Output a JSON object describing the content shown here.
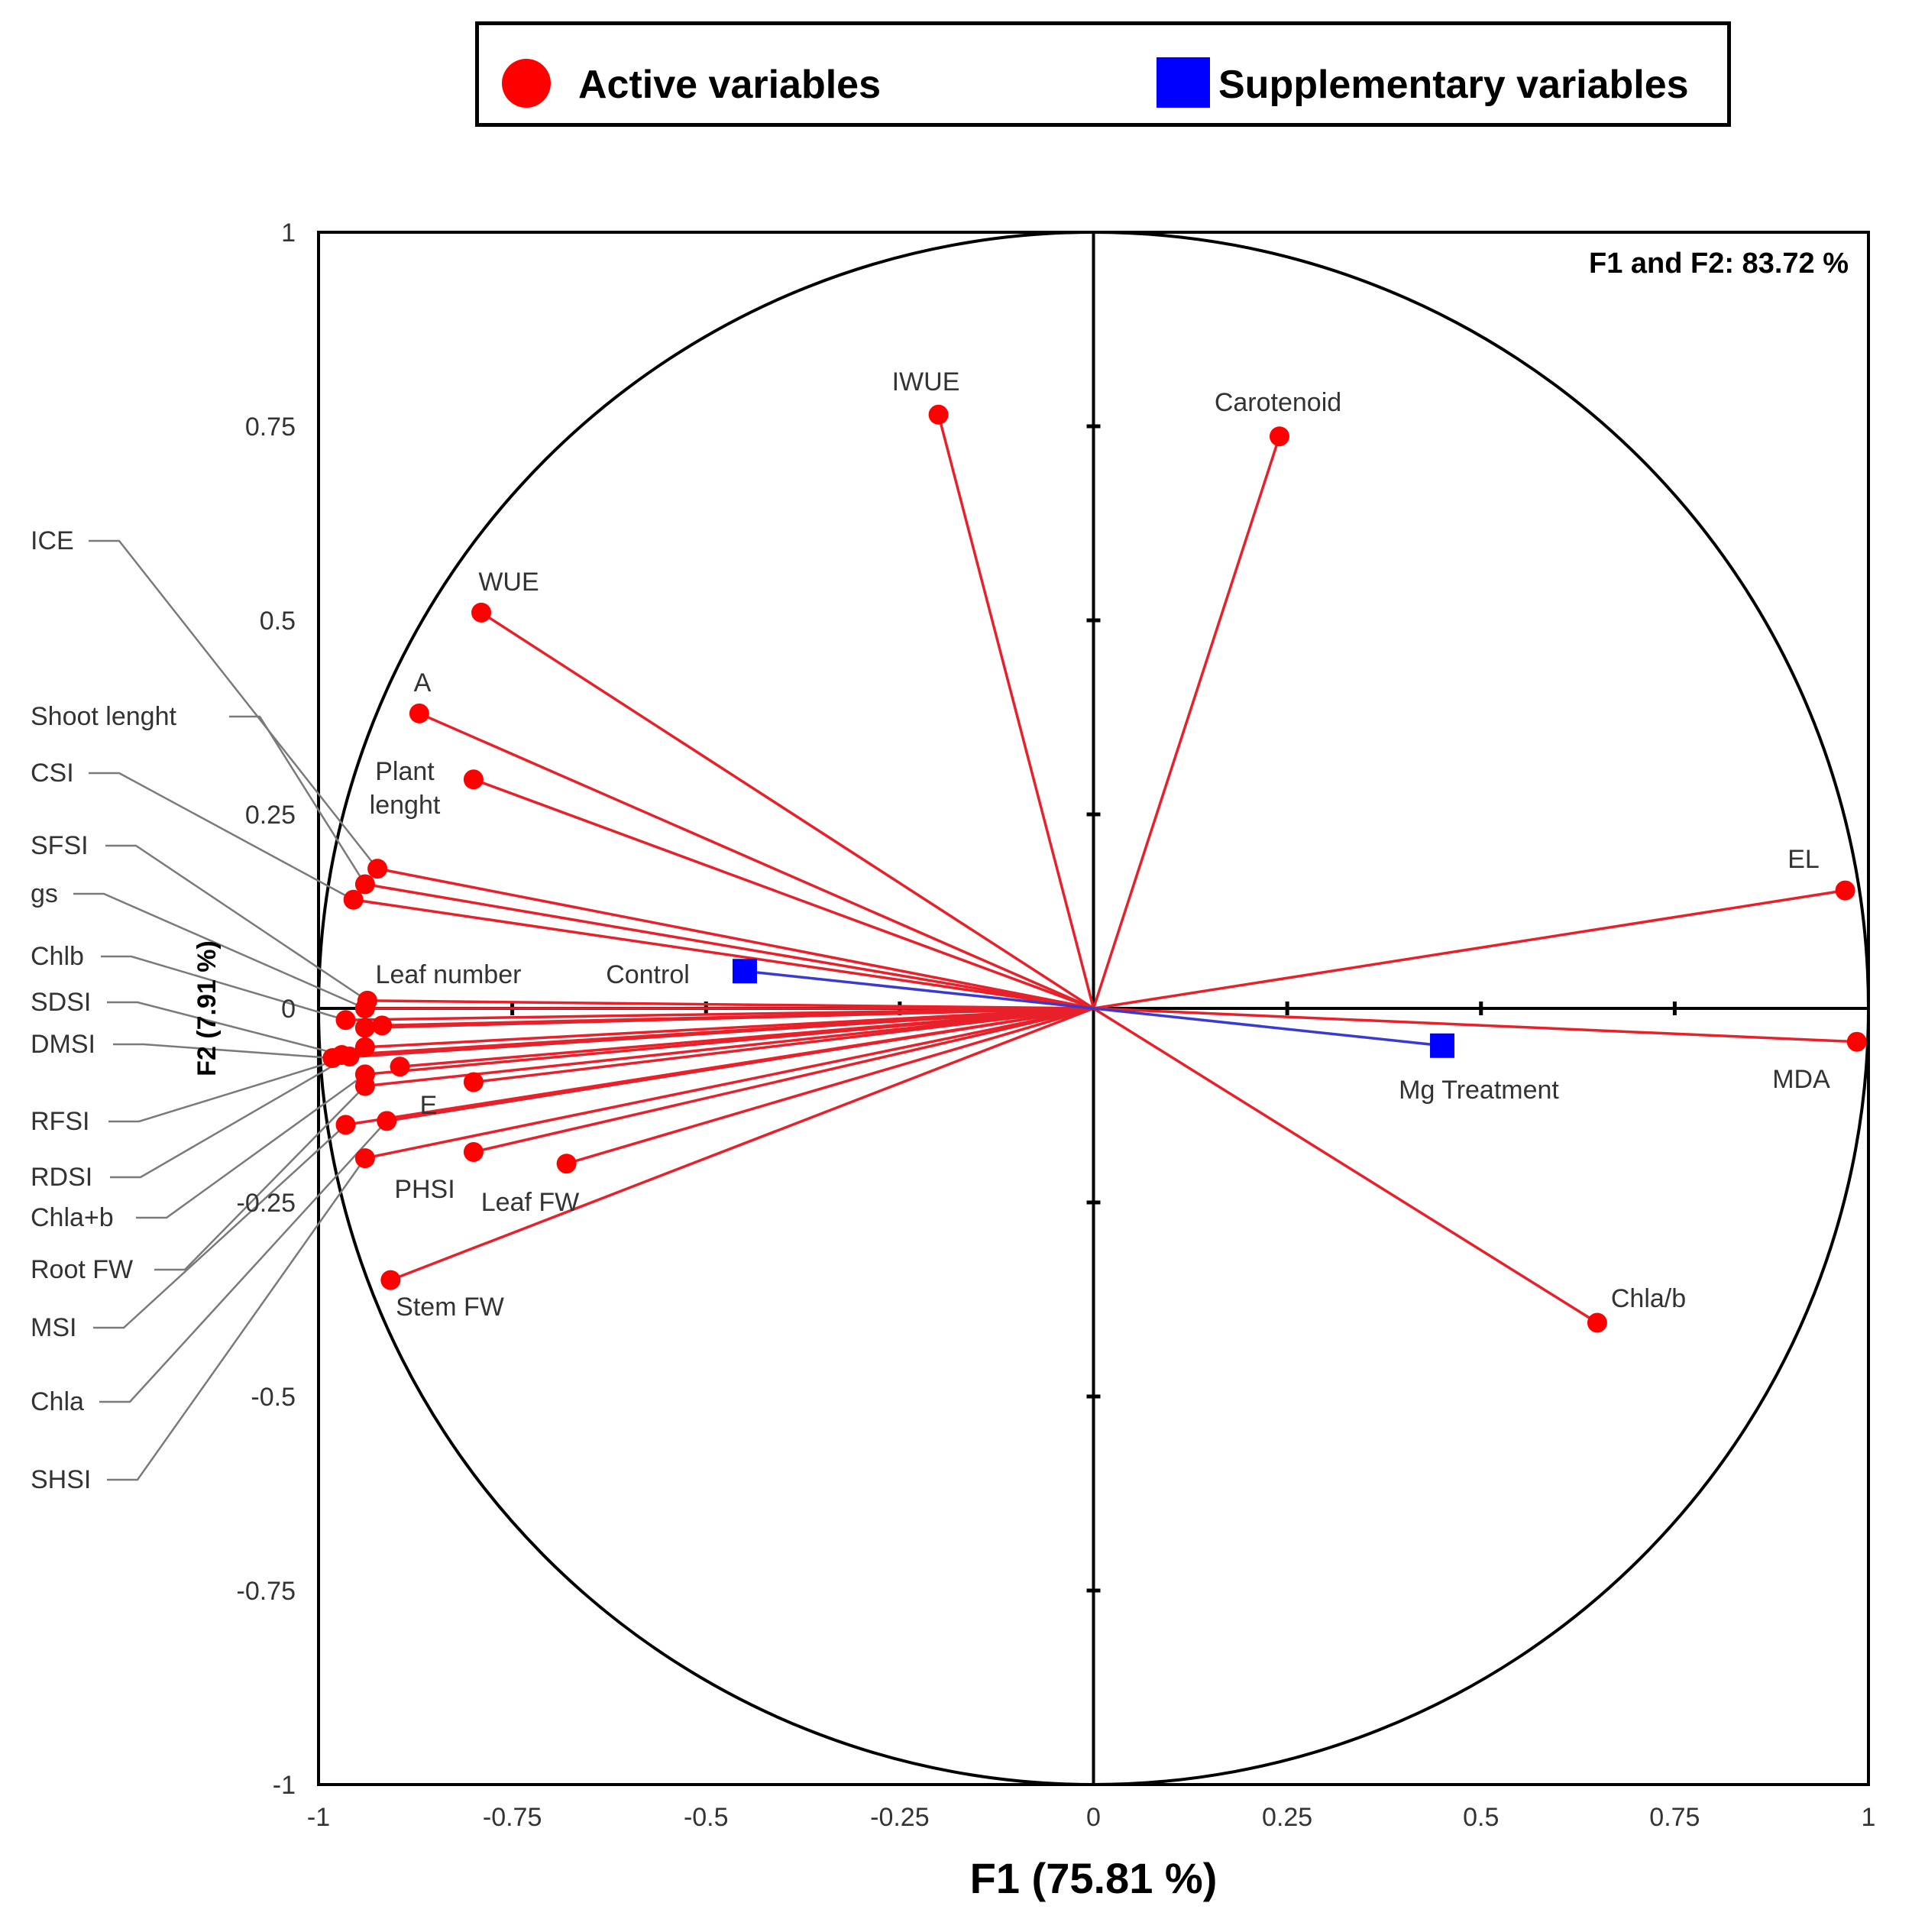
{
  "legend": {
    "active_label": "Active variables",
    "supplementary_label": "Supplementary variables"
  },
  "colors": {
    "active": "#ff0000",
    "supplementary": "#0000ff",
    "line_active": "#e8202a",
    "line_supplementary": "#3a3ad0",
    "axis": "#000000",
    "leader": "#7a7a7a"
  },
  "chart_data": {
    "type": "scatter",
    "subtype": "pca-correlation-circle",
    "title": "F1 and F2: 83.72 %",
    "xlabel": "F1 (75.81 %)",
    "ylabel": "F2 (7.91 %)",
    "xlim": [
      -1,
      1
    ],
    "ylim": [
      -1,
      1
    ],
    "xticks": [
      -1,
      -0.75,
      -0.5,
      -0.25,
      0,
      0.25,
      0.5,
      0.75,
      1
    ],
    "xtick_labels": [
      "-1",
      "-0.75",
      "-0.5",
      "-0.25",
      "0",
      "0.25",
      "0.5",
      "0.75",
      "1"
    ],
    "yticks": [
      1,
      0.75,
      0.5,
      0.25,
      0,
      -0.25,
      -0.5,
      -0.75,
      -1
    ],
    "ytick_labels": [
      "1",
      "0.75",
      "0.5",
      "0.25",
      "0",
      "-0.25",
      "-0.5",
      "-0.75",
      "-1"
    ],
    "series": [
      {
        "name": "Active variables",
        "marker": "circle",
        "points": [
          {
            "label": "IWUE",
            "x": -0.2,
            "y": 0.765
          },
          {
            "label": "Carotenoid",
            "x": 0.24,
            "y": 0.737
          },
          {
            "label": "WUE",
            "x": -0.79,
            "y": 0.51
          },
          {
            "label": "A",
            "x": -0.87,
            "y": 0.38
          },
          {
            "label": "Plant lenght",
            "x": -0.8,
            "y": 0.295
          },
          {
            "label": "EL",
            "x": 0.97,
            "y": 0.152
          },
          {
            "label": "ICE",
            "x": -0.924,
            "y": 0.18
          },
          {
            "label": "Shoot lenght",
            "x": -0.94,
            "y": 0.16
          },
          {
            "label": "CSI",
            "x": -0.955,
            "y": 0.14
          },
          {
            "label": "SFSI",
            "x": -0.937,
            "y": 0.01
          },
          {
            "label": "gs",
            "x": -0.94,
            "y": 0.0
          },
          {
            "label": "Leaf number",
            "x": -0.918,
            "y": -0.022
          },
          {
            "label": "Chlb",
            "x": -0.965,
            "y": -0.015
          },
          {
            "label": "SDSI",
            "x": -0.97,
            "y": -0.06
          },
          {
            "label": "DMSI",
            "x": -0.982,
            "y": -0.064
          },
          {
            "label": "RFSI",
            "x": -0.96,
            "y": -0.062
          },
          {
            "label": "RDSI",
            "x": -0.94,
            "y": -0.05
          },
          {
            "label": "Chla+b",
            "x": -0.94,
            "y": -0.085
          },
          {
            "label": "Root FW",
            "x": -0.94,
            "y": -0.1
          },
          {
            "label": "MSI",
            "x": -0.965,
            "y": -0.15
          },
          {
            "label": "E",
            "x": -0.895,
            "y": -0.075
          },
          {
            "label": "Chla",
            "x": -0.912,
            "y": -0.145
          },
          {
            "label": "SHSI",
            "x": -0.94,
            "y": -0.193
          },
          {
            "label": "PHSI",
            "x": -0.8,
            "y": -0.185
          },
          {
            "label": "Leaf FW",
            "x": -0.68,
            "y": -0.2
          },
          {
            "label": "Stem FW",
            "x": -0.907,
            "y": -0.35
          },
          {
            "label": "MDA",
            "x": 0.985,
            "y": -0.043
          },
          {
            "label": "Chla/b",
            "x": 0.65,
            "y": -0.405
          },
          {
            "label": "",
            "x": -0.8,
            "y": -0.095
          },
          {
            "label": "",
            "x": -0.94,
            "y": -0.025
          }
        ]
      },
      {
        "name": "Supplementary variables",
        "marker": "square",
        "points": [
          {
            "label": "Control",
            "x": -0.45,
            "y": 0.048
          },
          {
            "label": "Mg Treatment",
            "x": 0.45,
            "y": -0.048
          }
        ]
      }
    ],
    "annotations": [
      {
        "text": "IWUE"
      },
      {
        "text": "Carotenoid"
      },
      {
        "text": "WUE"
      },
      {
        "text": "A"
      },
      {
        "text": "Plant"
      },
      {
        "text": "lenght"
      },
      {
        "text": "EL"
      },
      {
        "text": "Leaf number"
      },
      {
        "text": "Control"
      },
      {
        "text": "Mg Treatment"
      },
      {
        "text": "MDA"
      },
      {
        "text": "E"
      },
      {
        "text": "PHSI"
      },
      {
        "text": "Leaf FW"
      },
      {
        "text": "Stem FW"
      },
      {
        "text": "Chla/b"
      },
      {
        "text": "ICE"
      },
      {
        "text": "Shoot lenght"
      },
      {
        "text": "CSI"
      },
      {
        "text": "SFSI"
      },
      {
        "text": "gs"
      },
      {
        "text": "Chlb"
      },
      {
        "text": "SDSI"
      },
      {
        "text": "DMSI"
      },
      {
        "text": "RFSI"
      },
      {
        "text": "RDSI"
      },
      {
        "text": "Chla+b"
      },
      {
        "text": "Root FW"
      },
      {
        "text": "MSI"
      },
      {
        "text": "Chla"
      },
      {
        "text": "SHSI"
      }
    ],
    "legend_position": "top",
    "grid": false
  }
}
